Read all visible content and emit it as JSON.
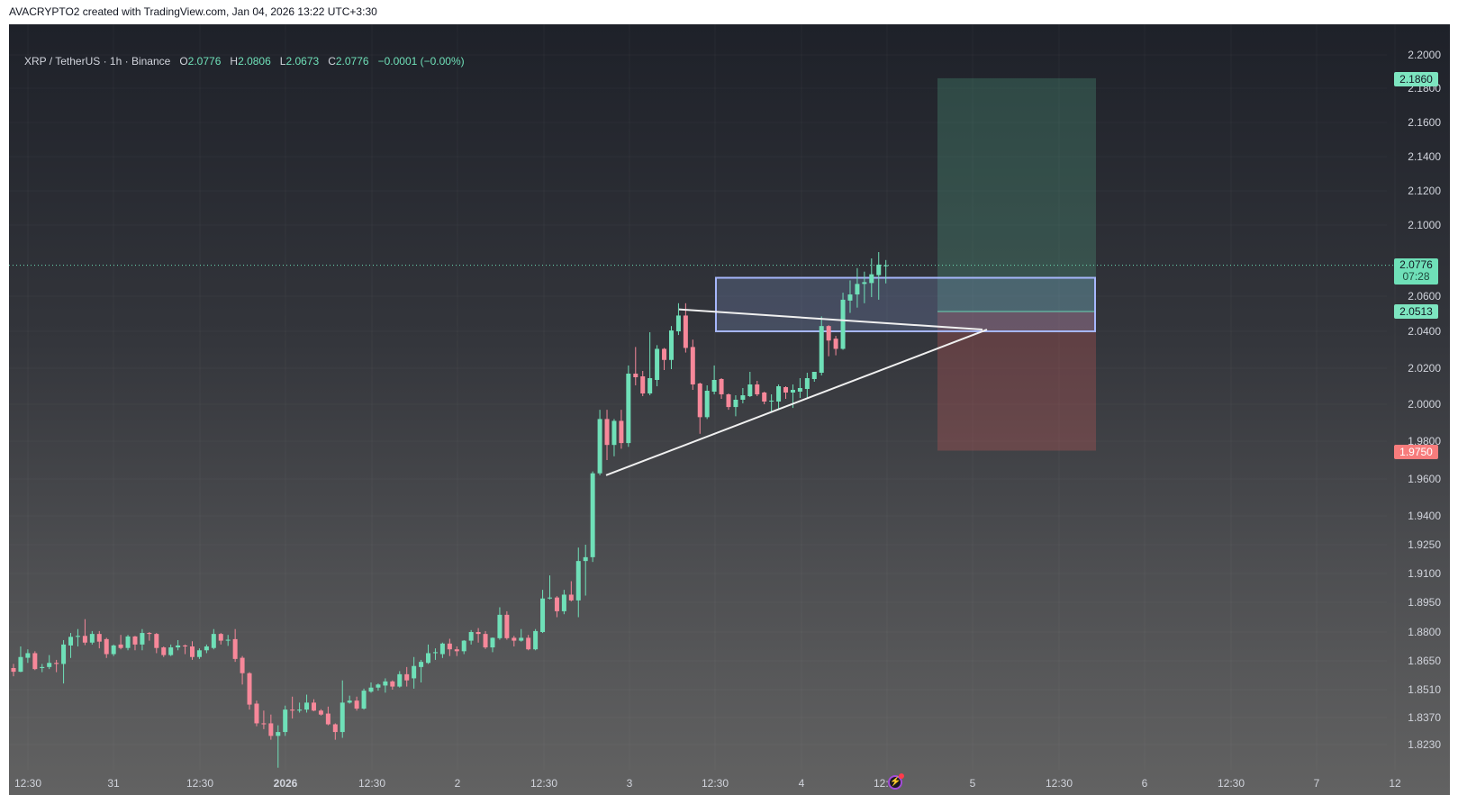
{
  "title": "AVACRYPTO2 created with TradingView.com, Jan 04, 2026 13:22 UTC+3:30",
  "legend": {
    "symbol": "XRP / TetherUS · 1h · Binance",
    "o_label": "O",
    "o": "2.0776",
    "h_label": "H",
    "h": "2.0806",
    "l_label": "L",
    "l": "2.0673",
    "c_label": "C",
    "c": "2.0776",
    "change": "−0.0001 (−0.00%)"
  },
  "colors": {
    "up": "#6fe0b8",
    "down": "#f7889a",
    "zone_border": "#a6b6fb",
    "target": "#7de5c0",
    "stop": "#f77c7c"
  },
  "price_tags": {
    "target": "2.1860",
    "last": "2.0776",
    "countdown": "07:28",
    "entry": "2.0513",
    "stop": "1.9750"
  },
  "drawings": {
    "zone": {
      "top": 2.0705,
      "bottom": 2.04
    },
    "position": {
      "target": 2.186,
      "entry": 2.0513,
      "stop": 1.975
    },
    "triangle_upper": [
      2.0525,
      2.041
    ],
    "triangle_lower": [
      1.962,
      2.041
    ]
  },
  "icons": {
    "events": "lightning-icon"
  },
  "chart_data": {
    "type": "candlestick",
    "interval": "1h",
    "price_axis": [
      "2.2000",
      "2.1800",
      "2.1600",
      "2.1400",
      "2.1200",
      "2.1000",
      "2.0600",
      "2.0400",
      "2.0200",
      "2.0000",
      "1.9800",
      "1.9600",
      "1.9400",
      "1.9250",
      "1.9100",
      "1.8950",
      "1.8800",
      "1.8650",
      "1.8510",
      "1.8370",
      "1.8230"
    ],
    "time_axis": [
      "12:30",
      "31",
      "12:30",
      "2026",
      "12:30",
      "2",
      "12:30",
      "3",
      "12:30",
      "4",
      "12:30",
      "5",
      "12:30",
      "6",
      "12:30",
      "7",
      "12"
    ],
    "ohlc": [
      [
        1.8615,
        1.8635,
        1.8575,
        1.8597
      ],
      [
        1.8597,
        1.8725,
        1.8595,
        1.867
      ],
      [
        1.8666,
        1.871,
        1.864,
        1.869
      ],
      [
        1.869,
        1.87,
        1.8605,
        1.861
      ],
      [
        1.8615,
        1.8635,
        1.8595,
        1.862
      ],
      [
        1.862,
        1.868,
        1.861,
        1.864
      ],
      [
        1.864,
        1.8655,
        1.8595,
        1.8635
      ],
      [
        1.8635,
        1.8758,
        1.854,
        1.8735
      ],
      [
        1.873,
        1.8795,
        1.8665,
        1.8775
      ],
      [
        1.8775,
        1.8815,
        1.8725,
        1.878
      ],
      [
        1.878,
        1.8865,
        1.8732,
        1.8745
      ],
      [
        1.8745,
        1.8805,
        1.8735,
        1.879
      ],
      [
        1.879,
        1.8805,
        1.8715,
        1.875
      ],
      [
        1.8763,
        1.877,
        1.8665,
        1.8685
      ],
      [
        1.8685,
        1.8735,
        1.8675,
        1.873
      ],
      [
        1.8735,
        1.8785,
        1.871,
        1.8717
      ],
      [
        1.8717,
        1.8785,
        1.8705,
        1.8777
      ],
      [
        1.8777,
        1.878,
        1.8705,
        1.8735
      ],
      [
        1.8735,
        1.8815,
        1.8705,
        1.8795
      ],
      [
        1.8795,
        1.88,
        1.8755,
        1.879
      ],
      [
        1.879,
        1.8795,
        1.869,
        1.8717
      ],
      [
        1.872,
        1.8725,
        1.867,
        1.868
      ],
      [
        1.868,
        1.8735,
        1.8675,
        1.872
      ],
      [
        1.872,
        1.8758,
        1.8705,
        1.873
      ],
      [
        1.873,
        1.8735,
        1.8685,
        1.8725
      ],
      [
        1.8725,
        1.8752,
        1.8655,
        1.867
      ],
      [
        1.867,
        1.8715,
        1.866,
        1.8705
      ],
      [
        1.8705,
        1.8735,
        1.869,
        1.8725
      ],
      [
        1.8717,
        1.8815,
        1.871,
        1.879
      ],
      [
        1.879,
        1.8795,
        1.8735,
        1.8755
      ],
      [
        1.8755,
        1.8785,
        1.8728,
        1.876
      ],
      [
        1.8763,
        1.8815,
        1.8645,
        1.866
      ],
      [
        1.8666,
        1.8675,
        1.8535,
        1.859
      ],
      [
        1.859,
        1.8595,
        1.841,
        1.8435
      ],
      [
        1.844,
        1.8455,
        1.8325,
        1.834
      ],
      [
        1.834,
        1.8405,
        1.831,
        1.8335
      ],
      [
        1.834,
        1.8385,
        1.8255,
        1.8275
      ],
      [
        1.8275,
        1.833,
        1.811,
        1.8295
      ],
      [
        1.8295,
        1.843,
        1.8275,
        1.841
      ],
      [
        1.841,
        1.8475,
        1.8365,
        1.8405
      ],
      [
        1.8405,
        1.8445,
        1.8395,
        1.841
      ],
      [
        1.841,
        1.8485,
        1.8395,
        1.8445
      ],
      [
        1.8445,
        1.8462,
        1.8402,
        1.8405
      ],
      [
        1.8405,
        1.8412,
        1.838,
        1.8385
      ],
      [
        1.839,
        1.8425,
        1.833,
        1.8335
      ],
      [
        1.8335,
        1.834,
        1.8255,
        1.8295
      ],
      [
        1.8295,
        1.8555,
        1.8265,
        1.8445
      ],
      [
        1.8445,
        1.848,
        1.844,
        1.8455
      ],
      [
        1.8455,
        1.8475,
        1.8405,
        1.8415
      ],
      [
        1.8415,
        1.8515,
        1.841,
        1.8505
      ],
      [
        1.85,
        1.8545,
        1.8495,
        1.852
      ],
      [
        1.852,
        1.854,
        1.8505,
        1.8535
      ],
      [
        1.853,
        1.8565,
        1.8495,
        1.855
      ],
      [
        1.855,
        1.8555,
        1.851,
        1.8525
      ],
      [
        1.8525,
        1.86,
        1.852,
        1.8585
      ],
      [
        1.8585,
        1.862,
        1.8525,
        1.8555
      ],
      [
        1.8565,
        1.867,
        1.8515,
        1.8625
      ],
      [
        1.862,
        1.8655,
        1.8545,
        1.8645
      ],
      [
        1.864,
        1.8735,
        1.8635,
        1.869
      ],
      [
        1.869,
        1.8715,
        1.8655,
        1.8695
      ],
      [
        1.8685,
        1.8745,
        1.8665,
        1.874
      ],
      [
        1.874,
        1.8765,
        1.8675,
        1.871
      ],
      [
        1.871,
        1.8725,
        1.8675,
        1.87
      ],
      [
        1.87,
        1.8758,
        1.8685,
        1.8755
      ],
      [
        1.8755,
        1.881,
        1.8735,
        1.88
      ],
      [
        1.88,
        1.882,
        1.8745,
        1.879
      ],
      [
        1.879,
        1.8805,
        1.8712,
        1.872
      ],
      [
        1.872,
        1.8772,
        1.8695,
        1.877
      ],
      [
        1.8768,
        1.8925,
        1.876,
        1.8887
      ],
      [
        1.8887,
        1.8905,
        1.876,
        1.8768
      ],
      [
        1.877,
        1.878,
        1.8725,
        1.8755
      ],
      [
        1.8755,
        1.8815,
        1.875,
        1.877
      ],
      [
        1.877,
        1.8785,
        1.8705,
        1.871
      ],
      [
        1.871,
        1.8815,
        1.8705,
        1.8805
      ],
      [
        1.88,
        1.9015,
        1.8795,
        1.897
      ],
      [
        1.897,
        1.909,
        1.8965,
        1.8975
      ],
      [
        1.8975,
        1.8982,
        1.8875,
        1.8905
      ],
      [
        1.8905,
        1.9015,
        1.889,
        1.899
      ],
      [
        1.899,
        1.906,
        1.8955,
        1.896
      ],
      [
        1.896,
        1.9235,
        1.8875,
        1.9165
      ],
      [
        1.9165,
        1.925,
        1.8985,
        1.9185
      ],
      [
        1.9185,
        1.964,
        1.916,
        1.963
      ],
      [
        1.963,
        1.997,
        1.962,
        1.992
      ],
      [
        1.992,
        1.997,
        1.97,
        1.978
      ],
      [
        1.978,
        1.992,
        1.972,
        1.991
      ],
      [
        1.991,
        1.997,
        1.976,
        1.979
      ],
      [
        1.979,
        2.0215,
        1.977,
        2.017
      ],
      [
        2.017,
        2.0315,
        2.0105,
        2.015
      ],
      [
        2.0155,
        2.0185,
        2.0045,
        2.006
      ],
      [
        2.006,
        2.0395,
        2.005,
        2.0145
      ],
      [
        2.0135,
        2.0325,
        2.01,
        2.0305
      ],
      [
        2.0305,
        2.031,
        2.019,
        2.0245
      ],
      [
        2.0245,
        2.043,
        2.0195,
        2.0405
      ],
      [
        2.04,
        2.056,
        2.038,
        2.049
      ],
      [
        2.049,
        2.056,
        2.0285,
        2.031
      ],
      [
        2.0315,
        2.0355,
        2.008,
        2.011
      ],
      [
        2.0115,
        2.012,
        1.984,
        1.993
      ],
      [
        1.993,
        2.0105,
        1.992,
        2.0075
      ],
      [
        2.007,
        2.0215,
        2.0055,
        2.0135
      ],
      [
        2.014,
        2.0145,
        2.003,
        2.0055
      ],
      [
        2.0055,
        2.006,
        1.997,
        1.9985
      ],
      [
        1.9985,
        2.005,
        1.9935,
        2.0025
      ],
      [
        2.0025,
        2.009,
        2.0005,
        2.005
      ],
      [
        2.0045,
        2.018,
        2.004,
        2.011
      ],
      [
        2.011,
        2.013,
        2.0045,
        2.0055
      ],
      [
        2.0065,
        2.007,
        2.0,
        2.0015
      ],
      [
        2.0015,
        2.0055,
        1.996,
        2.002
      ],
      [
        2.0015,
        2.011,
        1.997,
        2.01
      ],
      [
        2.0095,
        2.01,
        2.003,
        2.0065
      ],
      [
        2.0065,
        2.011,
        1.998,
        2.008
      ],
      [
        2.007,
        2.0145,
        2.0035,
        2.009
      ],
      [
        2.0085,
        2.0175,
        2.0035,
        2.0145
      ],
      [
        2.014,
        2.0175,
        2.0125,
        2.018
      ],
      [
        2.0175,
        2.0485,
        2.016,
        2.043
      ],
      [
        2.043,
        2.0435,
        2.0265,
        2.035
      ],
      [
        2.036,
        2.0375,
        2.027,
        2.0305
      ],
      [
        2.0305,
        2.062,
        2.03,
        2.058
      ],
      [
        2.0575,
        2.069,
        2.0505,
        2.061
      ],
      [
        2.061,
        2.076,
        2.0535,
        2.067
      ],
      [
        2.067,
        2.074,
        2.056,
        2.068
      ],
      [
        2.0675,
        2.0815,
        2.0595,
        2.0725
      ],
      [
        2.072,
        2.085,
        2.058,
        2.078
      ],
      [
        2.0776,
        2.0806,
        2.0673,
        2.0776
      ]
    ]
  }
}
